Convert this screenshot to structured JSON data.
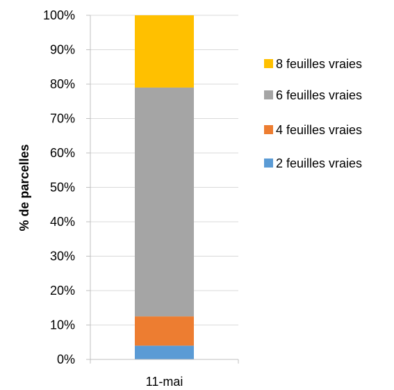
{
  "chart_data": {
    "type": "bar",
    "stacked": true,
    "categories": [
      "11-mai"
    ],
    "series": [
      {
        "name": "2 feuilles vraies",
        "values": [
          4
        ],
        "color": "#5B9BD5"
      },
      {
        "name": "4 feuilles vraies",
        "values": [
          8.5
        ],
        "color": "#ED7D31"
      },
      {
        "name": "6 feuilles vraies",
        "values": [
          66.5
        ],
        "color": "#A5A5A5"
      },
      {
        "name": "8 feuilles vraies",
        "values": [
          21
        ],
        "color": "#FFC000"
      }
    ],
    "title": "",
    "xlabel": "",
    "ylabel": "% de parcelles",
    "ylim": [
      0,
      100
    ],
    "yticks": [
      "0%",
      "10%",
      "20%",
      "30%",
      "40%",
      "50%",
      "60%",
      "70%",
      "80%",
      "90%",
      "100%"
    ],
    "grid": true,
    "legend_position": "right",
    "legend_order": [
      "8 feuilles vraies",
      "6 feuilles vraies",
      "4 feuilles vraies",
      "2 feuilles vraies"
    ]
  }
}
